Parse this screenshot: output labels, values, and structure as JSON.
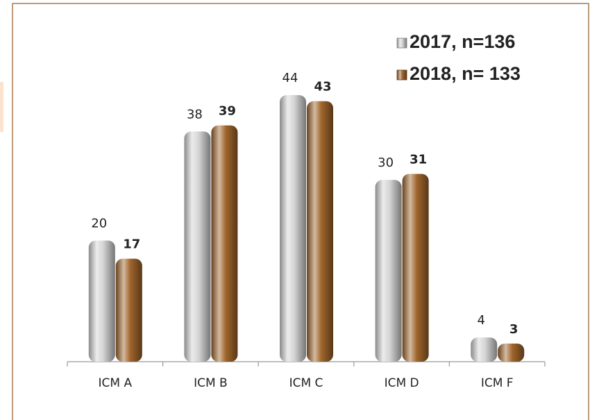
{
  "chart_data": {
    "type": "bar",
    "categories": [
      "ICM A",
      "ICM B",
      "ICM C",
      "ICM D",
      "ICM F"
    ],
    "series": [
      {
        "name": "2017, n=136",
        "color": "#d4d4d4",
        "values": [
          20,
          38,
          44,
          30,
          4
        ]
      },
      {
        "name": "2018, n= 133",
        "color": "#a0652c",
        "values": [
          17,
          39,
          43,
          31,
          3
        ]
      }
    ],
    "ylim": [
      0,
      50
    ],
    "legend": "upper right"
  }
}
